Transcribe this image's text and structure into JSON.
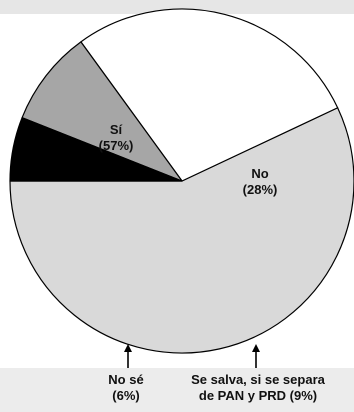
{
  "chart_data": {
    "type": "pie",
    "title": "",
    "slices": [
      {
        "label_line1": "Sí",
        "label_line2": "(57%)",
        "value": 57,
        "color": "#d9d9d9"
      },
      {
        "label_line1": "No",
        "label_line2": "(28%)",
        "value": 28,
        "color": "#ffffff"
      },
      {
        "label_line1": "Se salva, si se separa",
        "label_line2": "de PAN y PRD (9%)",
        "value": 9,
        "color": "#a6a6a6"
      },
      {
        "label_line1": "No sé",
        "label_line2": "(6%)",
        "value": 6,
        "color": "#000000"
      }
    ],
    "start_angle_deg": 180,
    "direction": "counterclockwise"
  }
}
